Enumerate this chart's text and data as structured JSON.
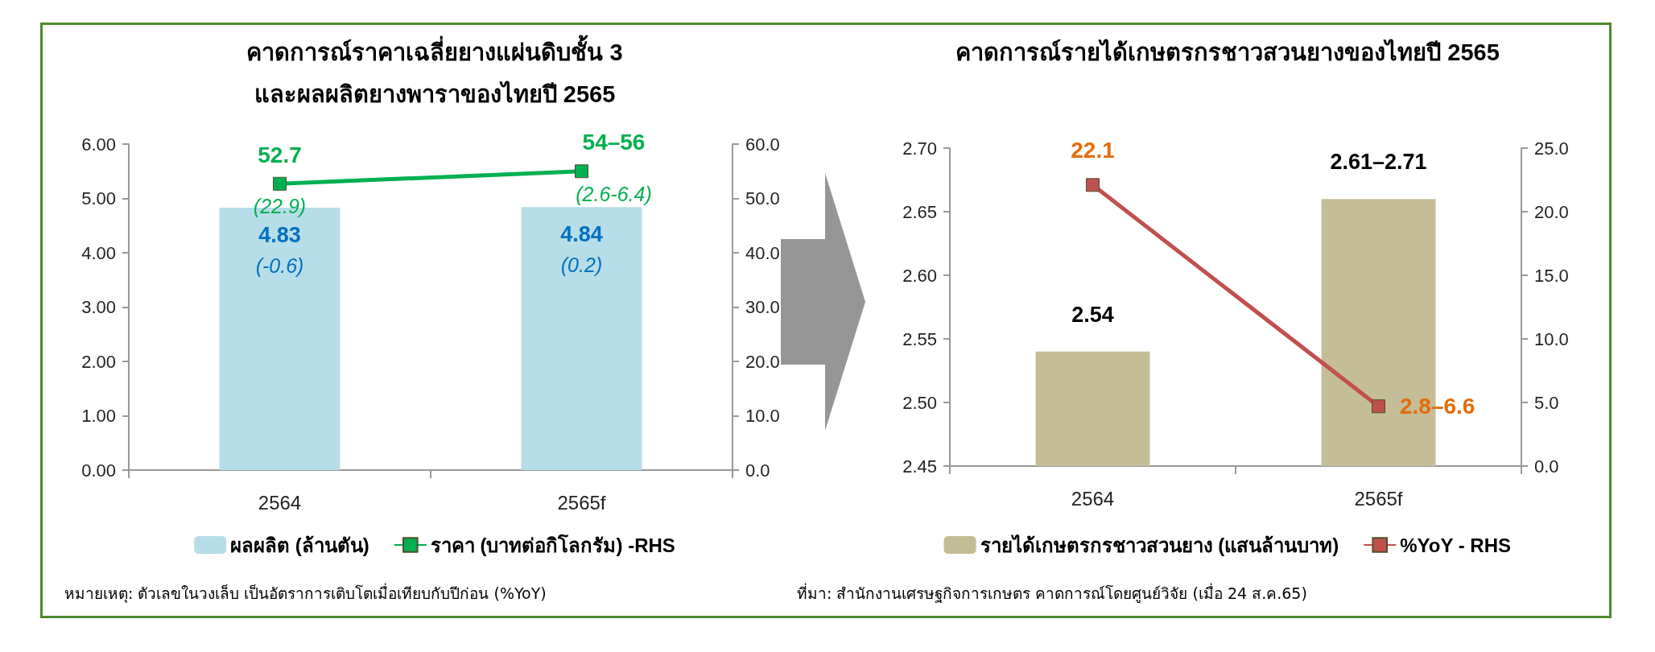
{
  "chart_data": [
    {
      "type": "bar",
      "title": "คาดการณ์ราคาเฉลี่ยยางแผ่นดิบชั้น 3\nและผลผลิตยางพาราของไทยปี 2565",
      "categories": [
        "2564",
        "2565f"
      ],
      "series": [
        {
          "name": "ผลผลิต (ล้านตัน)",
          "color": "#b7dde8",
          "values": [
            4.83,
            4.84
          ],
          "value_labels": [
            "4.83\n(-0.6)",
            "4.84\n(0.2)"
          ]
        },
        {
          "name": "ราคา (บาทต่อกิโลกรัม) -RHS",
          "type": "line",
          "axis": "y2",
          "color": "#00b050",
          "values": [
            52.7,
            55
          ],
          "value_labels": [
            "52.7\n(22.9)",
            "54–56\n(2.6-6.4)"
          ]
        }
      ],
      "ylim": [
        0,
        6
      ],
      "yticks": [
        {
          "value": 0,
          "label": "0.00"
        },
        {
          "value": 1,
          "label": "1.00"
        },
        {
          "value": 2,
          "label": "2.00"
        },
        {
          "value": 3,
          "label": "3.00"
        },
        {
          "value": 4,
          "label": "4.00"
        },
        {
          "value": 5,
          "label": "5.00"
        },
        {
          "value": 6,
          "label": "6.00"
        }
      ],
      "y2lim": [
        0,
        60
      ],
      "y2ticks": [
        {
          "value": 0,
          "label": "0.0"
        },
        {
          "value": 10,
          "label": "10.0"
        },
        {
          "value": 20,
          "label": "20.0"
        },
        {
          "value": 30,
          "label": "30.0"
        },
        {
          "value": 40,
          "label": "40.0"
        },
        {
          "value": 50,
          "label": "50.0"
        },
        {
          "value": 60,
          "label": "60.0"
        }
      ],
      "grid": false,
      "legend": "bottom",
      "marker": "square",
      "line_style": "solid",
      "annotations": [
        "หมายเหตุ: ตัวเลขในวงเล็บ เป็นอัตราการเติบโตเมื่อเทียบกับปีก่อน (%YoY)"
      ]
    },
    {
      "type": "bar",
      "title": "คาดการณ์รายได้เกษตรกรชาวสวนยางของไทยปี 2565",
      "categories": [
        "2564",
        "2565f"
      ],
      "series": [
        {
          "name": "รายได้เกษตรกรชาวสวนยาง (แสนล้านบาท)",
          "color": "#c4bd97",
          "values": [
            2.54,
            2.66
          ],
          "value_labels": [
            "2.54",
            "2.61–2.71"
          ]
        },
        {
          "name": "%YoY - RHS",
          "type": "line",
          "axis": "y2",
          "color": "#c0504d",
          "values": [
            22.1,
            4.7
          ],
          "value_labels": [
            "22.1",
            "2.8–6.6"
          ]
        }
      ],
      "ylim": [
        2.45,
        2.7
      ],
      "yticks": [
        2.45,
        {
          "value": 2.5,
          "label": "2.50"
        },
        2.55,
        {
          "value": 2.6,
          "label": "2.60"
        },
        2.65,
        {
          "value": 2.7,
          "label": "2.70"
        }
      ],
      "y2lim": [
        0,
        25
      ],
      "y2ticks": [
        {
          "value": 0,
          "label": "0.0"
        },
        {
          "value": 5,
          "label": "5.0"
        },
        {
          "value": 10,
          "label": "10.0"
        },
        {
          "value": 15,
          "label": "15.0"
        },
        {
          "value": 20,
          "label": "20.0"
        },
        {
          "value": 25,
          "label": "25.0"
        }
      ],
      "grid": false,
      "legend": "bottom",
      "marker": "square",
      "line_style": "solid",
      "annotations": [
        "ที่มา: สำนักงานเศรษฐกิจการเกษตร คาดการณ์โดยศูนย์วิจัย (เมื่อ 24 ส.ค.65)"
      ]
    }
  ]
}
